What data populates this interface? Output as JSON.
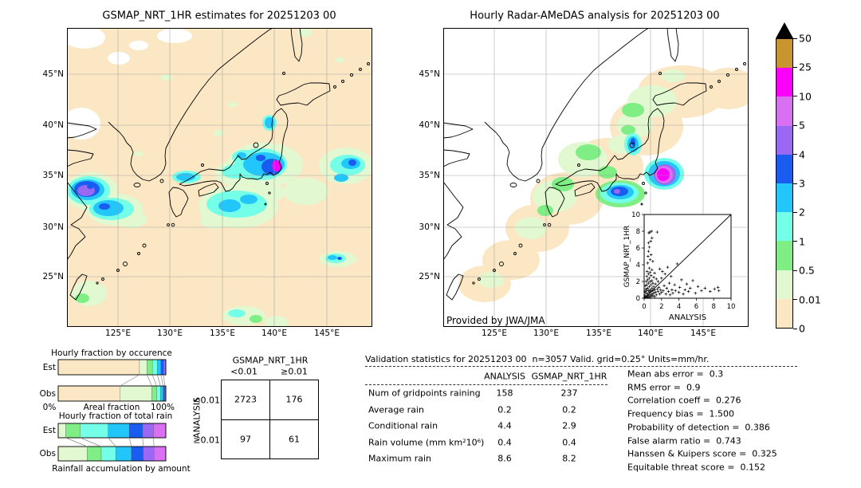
{
  "palette": {
    "peach": "#fbe7c4",
    "palegreen": "#e1f8d0",
    "green": "#7fee85",
    "lightcyan": "#73ffe8",
    "cyan": "#22c6fa",
    "blue": "#1b5cf0",
    "purple": "#9a68f2",
    "orchid": "#d970f2",
    "magenta": "#fa00fa",
    "gold": "#c9952f",
    "overflow": "#000000",
    "grid": "#9a9a9a"
  },
  "colorbar": {
    "tick_labels_top_to_bottom": [
      "50",
      "25",
      "10",
      "5",
      "4",
      "3",
      "2",
      "1",
      "0.5",
      "0.01",
      "0"
    ],
    "segment_colors_top_to_bottom": [
      "gold",
      "magenta",
      "orchid",
      "purple",
      "blue",
      "cyan",
      "lightcyan",
      "green",
      "palegreen",
      "peach"
    ],
    "overflow_marker": "black triangle (>50)"
  },
  "axis_ticks": {
    "x": [
      "125°E",
      "130°E",
      "135°E",
      "140°E",
      "145°E"
    ],
    "y": [
      "45°N",
      "40°N",
      "35°N",
      "30°N",
      "25°N"
    ]
  },
  "chart_data": [
    {
      "id": "gsmap_map",
      "type": "heatmap",
      "title": "GSMAP_NRT_1HR estimates for 20251203 00",
      "units": "mm/hr",
      "lon_ticks": [
        "125°E",
        "130°E",
        "135°E",
        "140°E",
        "145°E"
      ],
      "lat_ticks": [
        "45°N",
        "40°N",
        "35°N",
        "30°N",
        "25°N"
      ],
      "scale_levels": [
        0,
        0.01,
        0.5,
        1,
        2,
        3,
        4,
        5,
        10,
        25,
        50
      ],
      "notable_cells": [
        {
          "lon": 122.0,
          "lat": 33.8,
          "peak_mm_hr": "5-10"
        },
        {
          "lon": 124.2,
          "lat": 32.0,
          "peak_mm_hr": "3-4"
        },
        {
          "lon": 139.9,
          "lat": 35.7,
          "peak_mm_hr": "10-25"
        },
        {
          "lon": 137.3,
          "lat": 36.0,
          "peak_mm_hr": "3-4"
        },
        {
          "lon": 132.0,
          "lat": 35.0,
          "peak_mm_hr": "2-3"
        },
        {
          "lon": 136.8,
          "lat": 32.3,
          "peak_mm_hr": "2-3"
        },
        {
          "lon": 146.8,
          "lat": 36.2,
          "peak_mm_hr": "3-4"
        },
        {
          "lon": 146.0,
          "lat": 27.0,
          "peak_mm_hr": "2-3"
        },
        {
          "lon": 140.1,
          "lat": 40.7,
          "peak_mm_hr": "2-3"
        },
        {
          "lon": 121.3,
          "lat": 22.6,
          "peak_mm_hr": "0.5-1"
        },
        {
          "lon": 137.3,
          "lat": 21.9,
          "peak_mm_hr": "1-2"
        }
      ]
    },
    {
      "id": "radar_map",
      "type": "heatmap",
      "title": "Hourly Radar-AMeDAS analysis for 20251203 00",
      "credit": "Provided by JWA/JMA",
      "units": "mm/hr",
      "notable_cells": [
        {
          "lon": 140.0,
          "lat": 34.9,
          "peak_mm_hr": "10-25"
        },
        {
          "lon": 136.6,
          "lat": 33.4,
          "peak_mm_hr": "4-5"
        },
        {
          "lon": 138.7,
          "lat": 37.4,
          "peak_mm_hr": "3-4"
        },
        {
          "lon": "radar coverage band along archipelago",
          "lat": "",
          "peak_mm_hr": "0-1"
        }
      ]
    },
    {
      "id": "inset_scatter",
      "type": "scatter",
      "xlabel": "ANALYSIS",
      "ylabel": "GSMAP_NRT_1HR",
      "xlim": [
        0,
        10
      ],
      "ylim": [
        0,
        10
      ],
      "x_ticks": [
        0,
        2,
        4,
        6,
        8,
        10
      ],
      "y_ticks": [
        0,
        2,
        4,
        6,
        8,
        10
      ],
      "diagonal": true,
      "points": [
        [
          0.05,
          0.1
        ],
        [
          0.1,
          0.3
        ],
        [
          0.1,
          0.8
        ],
        [
          0.15,
          1.5
        ],
        [
          0.2,
          0.1
        ],
        [
          0.2,
          0.6
        ],
        [
          0.2,
          1.1
        ],
        [
          0.25,
          2.0
        ],
        [
          0.3,
          0.2
        ],
        [
          0.3,
          0.9
        ],
        [
          0.3,
          1.6
        ],
        [
          0.3,
          2.6
        ],
        [
          0.35,
          3.2
        ],
        [
          0.4,
          0.1
        ],
        [
          0.4,
          0.5
        ],
        [
          0.4,
          1.2
        ],
        [
          0.4,
          2.2
        ],
        [
          0.4,
          4.2
        ],
        [
          0.45,
          5.0
        ],
        [
          0.5,
          0.3
        ],
        [
          0.5,
          0.9
        ],
        [
          0.5,
          1.8
        ],
        [
          0.5,
          2.9
        ],
        [
          0.5,
          5.6
        ],
        [
          0.5,
          6.6
        ],
        [
          0.55,
          7.8
        ],
        [
          0.6,
          0.1
        ],
        [
          0.6,
          0.7
        ],
        [
          0.6,
          1.4
        ],
        [
          0.6,
          2.4
        ],
        [
          0.6,
          3.6
        ],
        [
          0.6,
          6.1
        ],
        [
          0.65,
          7.9
        ],
        [
          0.7,
          0.4
        ],
        [
          0.7,
          1.0
        ],
        [
          0.7,
          2.0
        ],
        [
          0.7,
          3.1
        ],
        [
          0.7,
          4.6
        ],
        [
          0.75,
          6.8
        ],
        [
          0.8,
          0.2
        ],
        [
          0.8,
          0.8
        ],
        [
          0.8,
          1.6
        ],
        [
          0.8,
          2.7
        ],
        [
          0.8,
          5.2
        ],
        [
          0.85,
          8.0
        ],
        [
          0.9,
          0.5
        ],
        [
          0.9,
          1.2
        ],
        [
          0.9,
          2.1
        ],
        [
          0.9,
          3.4
        ],
        [
          0.9,
          7.2
        ],
        [
          1.0,
          0.3
        ],
        [
          1.0,
          0.9
        ],
        [
          1.0,
          1.8
        ],
        [
          1.0,
          4.4
        ],
        [
          1.1,
          0.6
        ],
        [
          1.1,
          1.4
        ],
        [
          1.1,
          2.5
        ],
        [
          1.2,
          0.2
        ],
        [
          1.2,
          1.0
        ],
        [
          1.2,
          3.0
        ],
        [
          1.3,
          0.7
        ],
        [
          1.3,
          1.7
        ],
        [
          1.4,
          0.4
        ],
        [
          1.4,
          2.3
        ],
        [
          1.5,
          1.1
        ],
        [
          1.5,
          7.9
        ],
        [
          1.6,
          0.8
        ],
        [
          1.6,
          2.0
        ],
        [
          1.7,
          1.3
        ],
        [
          1.8,
          0.5
        ],
        [
          1.8,
          3.5
        ],
        [
          1.9,
          1.0
        ],
        [
          2.0,
          0.7
        ],
        [
          2.0,
          2.4
        ],
        [
          2.1,
          3.2
        ],
        [
          2.2,
          0.9
        ],
        [
          2.3,
          1.5
        ],
        [
          2.4,
          2.9
        ],
        [
          2.5,
          0.5
        ],
        [
          2.6,
          1.2
        ],
        [
          2.7,
          3.7
        ],
        [
          2.8,
          0.8
        ],
        [
          2.9,
          1.8
        ],
        [
          3.0,
          0.4
        ],
        [
          3.1,
          2.6
        ],
        [
          3.2,
          1.0
        ],
        [
          3.3,
          0.6
        ],
        [
          3.5,
          1.6
        ],
        [
          3.6,
          0.9
        ],
        [
          3.8,
          4.1
        ],
        [
          4.0,
          0.7
        ],
        [
          4.1,
          1.3
        ],
        [
          4.3,
          2.2
        ],
        [
          4.5,
          0.5
        ],
        [
          4.7,
          1.0
        ],
        [
          4.9,
          1.7
        ],
        [
          5.1,
          0.8
        ],
        [
          5.3,
          1.2
        ],
        [
          5.6,
          2.1
        ],
        [
          5.9,
          0.6
        ],
        [
          6.2,
          1.4
        ],
        [
          6.6,
          0.9
        ],
        [
          7.0,
          1.2
        ],
        [
          7.6,
          0.8
        ],
        [
          8.1,
          1.1
        ],
        [
          8.5,
          1.3
        ],
        [
          8.6,
          0.9
        ]
      ]
    },
    {
      "id": "occurrence",
      "type": "bar",
      "variant": "stacked-horizontal",
      "title": "Hourly fraction by occurence",
      "row_labels": [
        "Est",
        "Obs"
      ],
      "xlabel": "Areal fraction",
      "x_min_label": "0%",
      "x_max_label": "100%",
      "segment_colors": [
        "peach",
        "palegreen",
        "green",
        "lightcyan",
        "cyan",
        "blue",
        "purple"
      ],
      "series": [
        {
          "name": "Est",
          "values": [
            0.755,
            0.07,
            0.05,
            0.045,
            0.035,
            0.025,
            0.02
          ]
        },
        {
          "name": "Obs",
          "values": [
            0.575,
            0.295,
            0.045,
            0.035,
            0.025,
            0.015,
            0.01
          ]
        }
      ]
    },
    {
      "id": "total_rain",
      "type": "bar",
      "variant": "stacked-horizontal",
      "title": "Hourly fraction of total rain",
      "row_labels": [
        "Est",
        "Obs"
      ],
      "caption": "Rainfall accumulation by amount",
      "segment_colors": [
        "palegreen",
        "green",
        "lightcyan",
        "cyan",
        "blue",
        "purple",
        "orchid"
      ],
      "series": [
        {
          "name": "Est",
          "values": [
            0.07,
            0.135,
            0.26,
            0.195,
            0.125,
            0.1,
            0.115
          ]
        },
        {
          "name": "Obs",
          "values": [
            0.27,
            0.13,
            0.135,
            0.145,
            0.11,
            0.1,
            0.11
          ]
        }
      ]
    },
    {
      "id": "contingency",
      "type": "table",
      "col_group_label": "GSMAP_NRT_1HR",
      "row_group_label": "ANALYSIS",
      "col_labels": [
        "<0.01",
        "≥0.01"
      ],
      "row_labels": [
        "<0.01",
        "≥0.01"
      ],
      "values": [
        [
          "2723",
          "176"
        ],
        [
          "97",
          "61"
        ]
      ]
    },
    {
      "id": "validation",
      "type": "table",
      "title": "Validation statistics for 20251203 00  n=3057 Valid. grid=0.25° Units=mm/hr.",
      "columns": [
        "ANALYSIS",
        "GSMAP_NRT_1HR"
      ],
      "rows": [
        {
          "label": "Num of gridpoints raining",
          "analysis": "158",
          "gsmap": "237"
        },
        {
          "label": "Average rain",
          "analysis": "0.2",
          "gsmap": "0.2"
        },
        {
          "label": "Conditional rain",
          "analysis": "4.4",
          "gsmap": "2.9"
        },
        {
          "label": "Rain volume (mm km²10⁶)",
          "analysis": "0.4",
          "gsmap": "0.4"
        },
        {
          "label": "Maximum rain",
          "analysis": "8.6",
          "gsmap": "8.2"
        }
      ],
      "scores": [
        {
          "label": "Mean abs error",
          "value": "0.3"
        },
        {
          "label": "RMS error",
          "value": "0.9"
        },
        {
          "label": "Correlation coeff",
          "value": "0.276"
        },
        {
          "label": "Frequency bias",
          "value": "1.500"
        },
        {
          "label": "Probability of detection",
          "value": "0.386"
        },
        {
          "label": "False alarm ratio",
          "value": "0.743"
        },
        {
          "label": "Hanssen & Kuipers score",
          "value": "0.325"
        },
        {
          "label": "Equitable threat score",
          "value": "0.152"
        }
      ]
    }
  ]
}
